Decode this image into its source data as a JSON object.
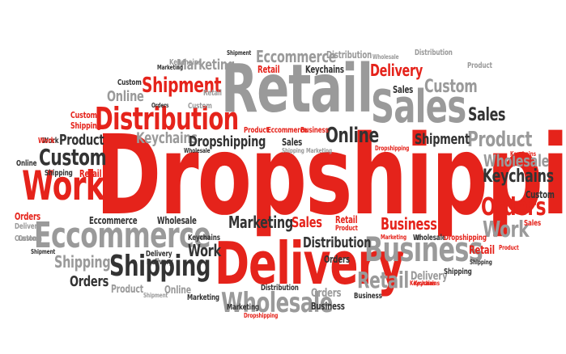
{
  "colors": {
    "red": "#e5231b",
    "grey": "#9a9a9a",
    "dark": "#333333",
    "background": "#ffffff"
  },
  "words": [
    {
      "text": "Dropshipping"
    },
    {
      "text": "Retail"
    },
    {
      "text": "Delivery"
    },
    {
      "text": "Sales"
    },
    {
      "text": "Eccommerce"
    },
    {
      "text": "Business"
    },
    {
      "text": "Distribution"
    },
    {
      "text": "Shipping"
    },
    {
      "text": "Work"
    },
    {
      "text": "Wholesale"
    },
    {
      "text": "Shipment"
    },
    {
      "text": "Custom"
    },
    {
      "text": "Product"
    },
    {
      "text": "Orders"
    },
    {
      "text": "Keychains"
    },
    {
      "text": "Online"
    },
    {
      "text": "Sales"
    },
    {
      "text": "Retail"
    },
    {
      "text": "Custom"
    },
    {
      "text": "Product"
    },
    {
      "text": "Eccommerce"
    },
    {
      "text": "Delivery"
    },
    {
      "text": "Keychains"
    },
    {
      "text": "Marketing"
    },
    {
      "text": "Shipment"
    },
    {
      "text": "Online"
    },
    {
      "text": "Dropshipping"
    },
    {
      "text": "Work"
    },
    {
      "text": "Distribution"
    },
    {
      "text": "Orders"
    },
    {
      "text": "Work"
    },
    {
      "text": "Wholesale"
    },
    {
      "text": "Keychains"
    },
    {
      "text": "Custom"
    },
    {
      "text": "Marketing"
    },
    {
      "text": "Sales"
    },
    {
      "text": "Retail"
    },
    {
      "text": "Business"
    },
    {
      "text": "Shipping"
    },
    {
      "text": "Orders"
    },
    {
      "text": "Product"
    },
    {
      "text": "Online"
    },
    {
      "text": "Delivery"
    },
    {
      "text": "Retail"
    },
    {
      "text": "Business"
    },
    {
      "text": "Orders"
    },
    {
      "text": "Business"
    },
    {
      "text": "Marketing"
    },
    {
      "text": "Shipment"
    },
    {
      "text": "Eccommerce"
    },
    {
      "text": "Distribution"
    },
    {
      "text": "Wholesale"
    },
    {
      "text": "Shipment"
    },
    {
      "text": "Distribution"
    },
    {
      "text": "Keychains"
    },
    {
      "text": "Marketing"
    },
    {
      "text": "Retail"
    },
    {
      "text": "Sales"
    },
    {
      "text": "Work"
    },
    {
      "text": "Online"
    },
    {
      "text": "Shipping"
    },
    {
      "text": "Custom"
    },
    {
      "text": "Retail"
    },
    {
      "text": "Delivery"
    },
    {
      "text": "Marketing"
    },
    {
      "text": "Wholesale"
    },
    {
      "text": "Dropshipping"
    },
    {
      "text": "Orders"
    },
    {
      "text": "Delivery"
    },
    {
      "text": "Custom"
    },
    {
      "text": "Shipment"
    },
    {
      "text": "Sales"
    },
    {
      "text": "Retail"
    },
    {
      "text": "Product"
    },
    {
      "text": "Wholesale"
    },
    {
      "text": "Keychains"
    },
    {
      "text": "Custom"
    },
    {
      "text": "Shipping"
    },
    {
      "text": "Product"
    },
    {
      "text": "Custom"
    },
    {
      "text": "Shipping"
    },
    {
      "text": "Work"
    },
    {
      "text": "Keychains"
    },
    {
      "text": "Product"
    },
    {
      "text": "Eccommerce"
    },
    {
      "text": "Business"
    },
    {
      "text": "Shipping"
    },
    {
      "text": "Keychains"
    },
    {
      "text": "Custom"
    },
    {
      "text": "Sales"
    },
    {
      "text": "Marketing"
    },
    {
      "text": "Wholesale"
    },
    {
      "text": "Dropshipping"
    },
    {
      "text": "Product"
    },
    {
      "text": "Delivery"
    },
    {
      "text": "Shipping"
    },
    {
      "text": "Keychains"
    },
    {
      "text": "Distribution"
    },
    {
      "text": "Dropshipping"
    },
    {
      "text": "Marketing"
    },
    {
      "text": "Orders"
    }
  ]
}
